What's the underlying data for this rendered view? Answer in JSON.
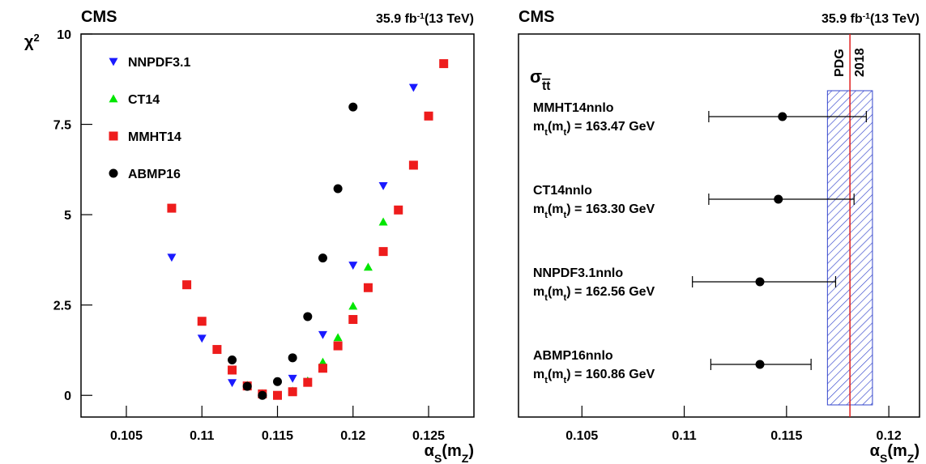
{
  "chart_data": [
    {
      "type": "scatter",
      "title": "CMS",
      "lumi": [
        "35.9 fb",
        "-1",
        "(13 TeV)"
      ],
      "ylabel": [
        "χ",
        "2"
      ],
      "xlabel": [
        "α",
        "S",
        "(m",
        "Z",
        ")"
      ],
      "xlim": [
        0.102,
        0.128
      ],
      "xticks": [
        0.105,
        0.11,
        0.115,
        0.12,
        0.125
      ],
      "ylim": [
        -0.6,
        10
      ],
      "yticks": [
        0,
        2.5,
        5,
        7.5,
        10
      ],
      "legend": "upper left",
      "series": [
        {
          "name": "NNPDF3.1",
          "color": "#1a1aff",
          "marker": "triangle-down",
          "x": [
            0.108,
            0.11,
            0.111,
            0.112,
            0.113,
            0.114,
            0.115,
            0.116,
            0.117,
            0.118,
            0.12,
            0.122,
            0.124
          ],
          "values": [
            3.82,
            1.58,
            1.27,
            0.35,
            0.28,
            0.03,
            0.0,
            0.47,
            0.38,
            1.68,
            3.6,
            5.8,
            8.52
          ]
        },
        {
          "name": "CT14",
          "color": "#00e600",
          "marker": "triangle-up",
          "x": [
            0.111,
            0.112,
            0.113,
            0.114,
            0.115,
            0.116,
            0.117,
            0.118,
            0.119,
            0.12,
            0.121,
            0.122
          ],
          "values": [
            1.25,
            0.7,
            0.28,
            0.05,
            -0.02,
            0.12,
            0.4,
            0.92,
            1.6,
            2.47,
            3.55,
            4.8
          ]
        },
        {
          "name": "MMHT14",
          "color": "#ee1c1c",
          "marker": "square",
          "x": [
            0.108,
            0.109,
            0.11,
            0.111,
            0.112,
            0.113,
            0.114,
            0.115,
            0.116,
            0.117,
            0.118,
            0.119,
            0.12,
            0.121,
            0.122,
            0.123,
            0.124,
            0.125,
            0.126
          ],
          "values": [
            5.18,
            3.06,
            2.05,
            1.27,
            0.7,
            0.26,
            0.04,
            0.0,
            0.1,
            0.36,
            0.75,
            1.37,
            2.1,
            2.98,
            3.98,
            5.13,
            6.37,
            7.73,
            9.18
          ]
        },
        {
          "name": "ABMP16",
          "color": "#000000",
          "marker": "circle",
          "x": [
            0.112,
            0.113,
            0.114,
            0.115,
            0.116,
            0.117,
            0.118,
            0.119,
            0.12
          ],
          "values": [
            0.98,
            0.25,
            0.0,
            0.38,
            1.04,
            2.18,
            3.8,
            5.72,
            7.98
          ]
        }
      ]
    },
    {
      "type": "errorbar",
      "title": "CMS",
      "lumi": [
        "35.9 fb",
        "-1",
        "(13 TeV)"
      ],
      "xlabel": [
        "α",
        "S",
        "(m",
        "Z",
        ")"
      ],
      "xlim": [
        0.1019,
        0.1215
      ],
      "xticks": [
        0.105,
        0.11,
        0.115,
        0.12
      ],
      "label": [
        "σ",
        "tt"
      ],
      "categories": [
        "MMHT14nnlo",
        "CT14nnlo",
        "NNPDF3.1nnlo",
        "ABMP16nnlo"
      ],
      "mass_prefix": [
        "m",
        "t",
        "(m",
        "t",
        ") = "
      ],
      "masses": [
        "163.47 GeV",
        "163.30 GeV",
        "162.56 GeV",
        "160.86 GeV"
      ],
      "values": [
        0.1148,
        0.1146,
        0.1137,
        0.1137
      ],
      "lower": [
        0.1112,
        0.1112,
        0.1104,
        0.1113
      ],
      "upper": [
        0.1189,
        0.1183,
        0.1174,
        0.1162
      ],
      "color": "#000000",
      "reference": {
        "label": [
          "PDG",
          "2018"
        ],
        "value": 0.1181,
        "band": [
          0.117,
          0.1192
        ],
        "color": "#e0201f",
        "band_color": "#3344cc"
      }
    }
  ]
}
